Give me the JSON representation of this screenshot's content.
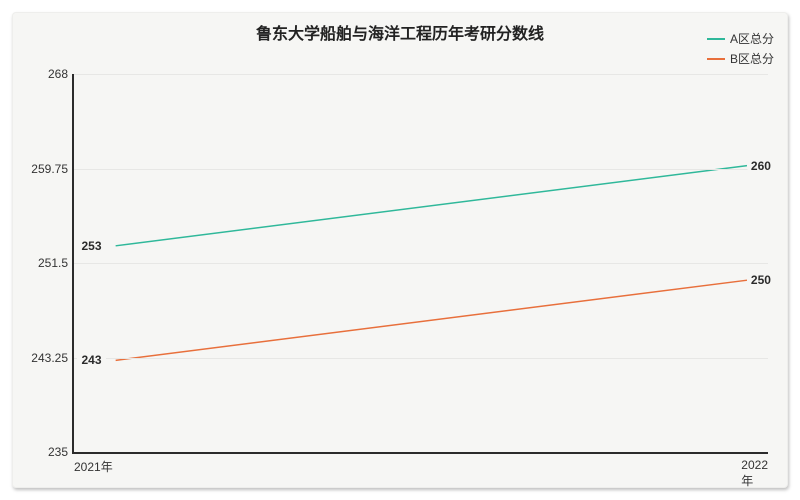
{
  "chart": {
    "type": "line",
    "title": "鲁东大学船舶与海洋工程历年考研分数线",
    "title_fontsize": 16,
    "background_color": "#f6f6f4",
    "page_background": "#ffffff",
    "axis_color": "#2b2b2b",
    "grid_color": "#e7e7e5",
    "label_fontsize": 12,
    "x": {
      "categories": [
        "2021年",
        "2022年"
      ]
    },
    "y": {
      "min": 235,
      "max": 268,
      "ticks": [
        235,
        243.25,
        251.5,
        259.75,
        268
      ]
    },
    "series": [
      {
        "name": "A区总分",
        "color": "#2fb89a",
        "values": [
          253,
          260
        ]
      },
      {
        "name": "B区总分",
        "color": "#e86f3b",
        "values": [
          243,
          250
        ]
      }
    ],
    "line_width": 1.5
  }
}
